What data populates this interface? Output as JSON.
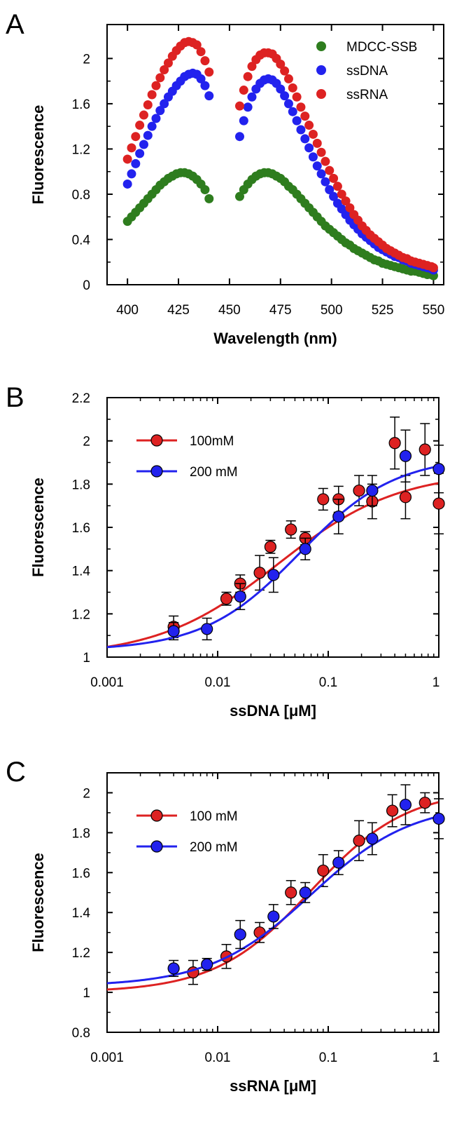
{
  "chart_data": [
    {
      "panel": "A",
      "type": "scatter",
      "xlabel": "Wavelength (nm)",
      "ylabel": "Fluorescence",
      "xlim": [
        390,
        555
      ],
      "ylim": [
        0,
        2.3
      ],
      "x_ticks": [
        "400",
        "425",
        "450",
        "475",
        "500",
        "525",
        "550"
      ],
      "y_ticks": [
        "0",
        "0.4",
        "0.8",
        "1.2",
        "1.6",
        "2"
      ],
      "legend_position": "top-right",
      "series": [
        {
          "name": "MDCC-SSB",
          "color": "#2e7d1e",
          "segments": [
            {
              "x": [
                400,
                402,
                404,
                406,
                408,
                410,
                412,
                414,
                416,
                418,
                420,
                422,
                424,
                426,
                428,
                430,
                432,
                434,
                436,
                438,
                440
              ],
              "y": [
                0.56,
                0.6,
                0.64,
                0.68,
                0.72,
                0.76,
                0.8,
                0.84,
                0.88,
                0.91,
                0.94,
                0.96,
                0.98,
                0.99,
                0.99,
                0.98,
                0.96,
                0.93,
                0.89,
                0.84,
                0.76
              ]
            },
            {
              "x": [
                455,
                457,
                459,
                461,
                463,
                465,
                467,
                469,
                471,
                473,
                475,
                477,
                479,
                481,
                483,
                485,
                487,
                489,
                491,
                493,
                495,
                497,
                499,
                501,
                503,
                505,
                507,
                509,
                511,
                513,
                515,
                517,
                519,
                521,
                523,
                525,
                527,
                529,
                531,
                533,
                535,
                537,
                539,
                541,
                543,
                545,
                547,
                549,
                550
              ],
              "y": [
                0.78,
                0.84,
                0.89,
                0.93,
                0.96,
                0.98,
                0.99,
                0.99,
                0.98,
                0.96,
                0.94,
                0.91,
                0.87,
                0.84,
                0.8,
                0.76,
                0.72,
                0.68,
                0.64,
                0.6,
                0.56,
                0.52,
                0.49,
                0.46,
                0.43,
                0.4,
                0.37,
                0.35,
                0.32,
                0.3,
                0.28,
                0.26,
                0.24,
                0.22,
                0.21,
                0.19,
                0.18,
                0.17,
                0.16,
                0.15,
                0.14,
                0.13,
                0.12,
                0.12,
                0.11,
                0.1,
                0.09,
                0.09,
                0.08
              ]
            }
          ]
        },
        {
          "name": "ssDNA",
          "color": "#2222ee",
          "segments": [
            {
              "x": [
                400,
                402,
                404,
                406,
                408,
                410,
                412,
                414,
                416,
                418,
                420,
                422,
                424,
                426,
                428,
                430,
                432,
                434,
                436,
                438,
                440
              ],
              "y": [
                0.89,
                0.98,
                1.07,
                1.16,
                1.24,
                1.32,
                1.4,
                1.47,
                1.54,
                1.6,
                1.66,
                1.71,
                1.76,
                1.8,
                1.84,
                1.86,
                1.87,
                1.86,
                1.82,
                1.76,
                1.67
              ]
            },
            {
              "x": [
                455,
                457,
                459,
                461,
                463,
                465,
                467,
                469,
                471,
                473,
                475,
                477,
                479,
                481,
                483,
                485,
                487,
                489,
                491,
                493,
                495,
                497,
                499,
                501,
                503,
                505,
                507,
                509,
                511,
                513,
                515,
                517,
                519,
                521,
                523,
                525,
                527,
                529,
                531,
                533,
                535,
                537,
                539,
                541,
                543,
                545,
                547,
                549,
                550
              ],
              "y": [
                1.31,
                1.45,
                1.57,
                1.66,
                1.73,
                1.78,
                1.81,
                1.82,
                1.81,
                1.78,
                1.73,
                1.67,
                1.6,
                1.53,
                1.45,
                1.37,
                1.29,
                1.21,
                1.13,
                1.05,
                0.98,
                0.91,
                0.84,
                0.78,
                0.72,
                0.67,
                0.62,
                0.57,
                0.53,
                0.49,
                0.45,
                0.42,
                0.39,
                0.36,
                0.33,
                0.31,
                0.29,
                0.27,
                0.25,
                0.24,
                0.22,
                0.21,
                0.19,
                0.18,
                0.17,
                0.16,
                0.15,
                0.14,
                0.13
              ]
            }
          ]
        },
        {
          "name": "ssRNA",
          "color": "#dd2222",
          "segments": [
            {
              "x": [
                400,
                402,
                404,
                406,
                408,
                410,
                412,
                414,
                416,
                418,
                420,
                422,
                424,
                426,
                428,
                430,
                432,
                434,
                436,
                438,
                440
              ],
              "y": [
                1.11,
                1.21,
                1.31,
                1.41,
                1.5,
                1.59,
                1.68,
                1.76,
                1.83,
                1.9,
                1.96,
                2.02,
                2.07,
                2.11,
                2.14,
                2.15,
                2.14,
                2.12,
                2.06,
                1.98,
                1.88
              ]
            },
            {
              "x": [
                455,
                457,
                459,
                461,
                463,
                465,
                467,
                469,
                471,
                473,
                475,
                477,
                479,
                481,
                483,
                485,
                487,
                489,
                491,
                493,
                495,
                497,
                499,
                501,
                503,
                505,
                507,
                509,
                511,
                513,
                515,
                517,
                519,
                521,
                523,
                525,
                527,
                529,
                531,
                533,
                535,
                537,
                539,
                541,
                543,
                545,
                547,
                549,
                550
              ],
              "y": [
                1.58,
                1.72,
                1.84,
                1.93,
                1.99,
                2.03,
                2.05,
                2.05,
                2.04,
                2.0,
                1.95,
                1.89,
                1.82,
                1.74,
                1.66,
                1.57,
                1.49,
                1.41,
                1.33,
                1.25,
                1.17,
                1.09,
                1.01,
                0.94,
                0.87,
                0.8,
                0.74,
                0.68,
                0.62,
                0.57,
                0.52,
                0.48,
                0.44,
                0.41,
                0.38,
                0.35,
                0.32,
                0.3,
                0.28,
                0.26,
                0.24,
                0.23,
                0.21,
                0.2,
                0.19,
                0.18,
                0.17,
                0.16,
                0.15
              ]
            }
          ]
        }
      ]
    },
    {
      "panel": "B",
      "type": "scatter",
      "xscale": "log",
      "xlabel": "ssDNA [μM]",
      "ylabel": "Fluorescence",
      "xlim": [
        0.001,
        1
      ],
      "ylim": [
        1,
        2.2
      ],
      "x_ticks": [
        "0.001",
        "0.01",
        "0.1",
        "1"
      ],
      "y_ticks": [
        "1",
        "1.2",
        "1.4",
        "1.6",
        "1.8",
        "2",
        "2.2"
      ],
      "legend_position": "top-left",
      "series": [
        {
          "name": "100mM",
          "color": "#dd2222",
          "x": [
            0.004,
            0.012,
            0.016,
            0.024,
            0.03,
            0.046,
            0.062,
            0.09,
            0.124,
            0.19,
            0.25,
            0.4,
            0.5,
            0.75,
            1.0
          ],
          "y": [
            1.14,
            1.27,
            1.34,
            1.39,
            1.51,
            1.59,
            1.55,
            1.73,
            1.73,
            1.77,
            1.72,
            1.99,
            1.74,
            1.96,
            1.71
          ],
          "err": [
            0.05,
            0.03,
            0.04,
            0.08,
            0.03,
            0.04,
            0.03,
            0.05,
            0.06,
            0.07,
            0.08,
            0.12,
            0.1,
            0.12,
            0.14
          ],
          "fit": {
            "bottom": 1.0,
            "top": 1.86,
            "ec50": 0.035,
            "hill": 0.8
          }
        },
        {
          "name": "200 mM",
          "color": "#2222ee",
          "x": [
            0.004,
            0.008,
            0.016,
            0.032,
            0.062,
            0.124,
            0.25,
            0.5,
            1.0
          ],
          "y": [
            1.12,
            1.13,
            1.28,
            1.38,
            1.5,
            1.65,
            1.77,
            1.93,
            1.87
          ],
          "err": [
            0.04,
            0.05,
            0.06,
            0.08,
            0.05,
            0.08,
            0.07,
            0.12,
            0.11
          ],
          "fit": {
            "bottom": 1.03,
            "top": 1.93,
            "ec50": 0.055,
            "hill": 1.0
          }
        }
      ]
    },
    {
      "panel": "C",
      "type": "scatter",
      "xscale": "log",
      "xlabel": "ssRNA [μM]",
      "ylabel": "Fluorescence",
      "xlim": [
        0.001,
        1
      ],
      "ylim": [
        0.8,
        2.1
      ],
      "x_ticks": [
        "0.001",
        "0.01",
        "0.1",
        "1"
      ],
      "y_ticks": [
        "0.8",
        "1",
        "1.2",
        "1.4",
        "1.6",
        "1.8",
        "2"
      ],
      "legend_position": "top-left",
      "series": [
        {
          "name": "100 mM",
          "color": "#dd2222",
          "x": [
            0.006,
            0.012,
            0.024,
            0.046,
            0.09,
            0.19,
            0.38,
            0.75
          ],
          "y": [
            1.1,
            1.18,
            1.3,
            1.5,
            1.61,
            1.76,
            1.91,
            1.95
          ],
          "err": [
            0.06,
            0.06,
            0.05,
            0.06,
            0.08,
            0.1,
            0.08,
            0.05
          ],
          "fit": {
            "bottom": 1.0,
            "top": 2.02,
            "ec50": 0.07,
            "hill": 1.0
          }
        },
        {
          "name": "200 mM",
          "color": "#2222ee",
          "x": [
            0.004,
            0.008,
            0.016,
            0.032,
            0.062,
            0.124,
            0.25,
            0.5,
            1.0
          ],
          "y": [
            1.12,
            1.14,
            1.29,
            1.38,
            1.5,
            1.65,
            1.77,
            1.94,
            1.87
          ],
          "err": [
            0.04,
            0.03,
            0.07,
            0.06,
            0.05,
            0.06,
            0.08,
            0.1,
            0.1
          ],
          "fit": {
            "bottom": 1.03,
            "top": 1.95,
            "ec50": 0.07,
            "hill": 0.95
          }
        }
      ]
    }
  ],
  "panel_labels": [
    "A",
    "B",
    "C"
  ]
}
